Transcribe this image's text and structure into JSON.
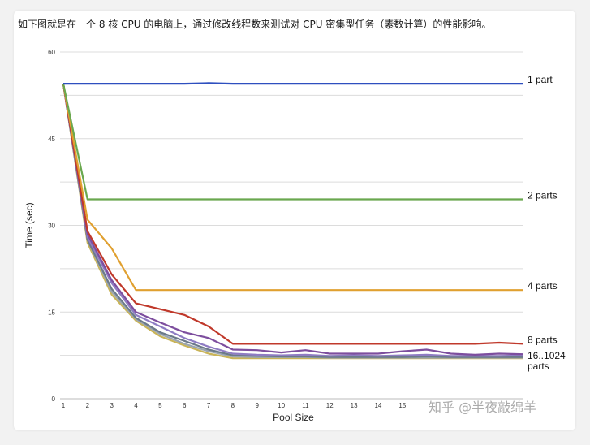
{
  "caption": "如下图就是在一个 8 核 CPU 的电脑上，通过修改线程数来测试对 CPU 密集型任务（素数计算）的性能影响。",
  "watermark": "知乎 @半夜敲绵羊",
  "chart_data": {
    "type": "line",
    "title": "",
    "xlabel": "Pool Size",
    "ylabel": "Time (sec)",
    "ylim": [
      0,
      60
    ],
    "xlim": [
      1,
      20
    ],
    "y_ticks": [
      0,
      15,
      30,
      45,
      60
    ],
    "x": [
      1,
      2,
      3,
      4,
      5,
      6,
      7,
      8,
      9,
      10,
      11,
      12,
      13,
      14,
      15,
      16,
      17,
      18,
      19,
      20
    ],
    "x_tick_labels": [
      "1",
      "2",
      "3",
      "4",
      "5",
      "6",
      "7",
      "8",
      "9",
      "10",
      "11",
      "12",
      "13",
      "14",
      "15",
      "",
      "",
      "",
      "",
      ""
    ],
    "grid": true,
    "series": [
      {
        "name": "1 part",
        "color": "#2e4fbf",
        "values": [
          54.5,
          54.5,
          54.5,
          54.5,
          54.5,
          54.5,
          54.6,
          54.5,
          54.5,
          54.5,
          54.5,
          54.5,
          54.5,
          54.5,
          54.5,
          54.5,
          54.5,
          54.5,
          54.5,
          54.5
        ]
      },
      {
        "name": "2 parts",
        "color": "#6aa84f",
        "values": [
          54.5,
          34.5,
          34.5,
          34.5,
          34.5,
          34.5,
          34.5,
          34.5,
          34.5,
          34.5,
          34.5,
          34.5,
          34.5,
          34.5,
          34.5,
          34.5,
          34.5,
          34.5,
          34.5,
          34.5
        ]
      },
      {
        "name": "4 parts",
        "color": "#e0a030",
        "values": [
          54.5,
          31.0,
          26.0,
          18.8,
          18.8,
          18.8,
          18.8,
          18.8,
          18.8,
          18.8,
          18.8,
          18.8,
          18.8,
          18.8,
          18.8,
          18.8,
          18.8,
          18.8,
          18.8,
          18.8
        ]
      },
      {
        "name": "8 parts",
        "color": "#c0392b",
        "values": [
          54.5,
          29.0,
          21.5,
          16.5,
          15.5,
          14.5,
          12.5,
          9.5,
          9.5,
          9.5,
          9.5,
          9.5,
          9.5,
          9.5,
          9.5,
          9.5,
          9.5,
          9.5,
          9.7,
          9.5
        ]
      },
      {
        "name": "",
        "color": "#7d4e9e",
        "values": [
          54.5,
          28.5,
          20.5,
          15.0,
          13.2,
          11.5,
          10.5,
          8.5,
          8.4,
          8.0,
          8.4,
          7.8,
          7.8,
          7.8,
          8.2,
          8.5,
          7.8,
          7.6,
          7.8,
          7.7
        ]
      },
      {
        "name": "",
        "color": "#8e7cc3",
        "values": [
          54.5,
          28.0,
          20.0,
          14.5,
          12.5,
          10.5,
          9.0,
          7.8,
          7.6,
          7.5,
          7.6,
          7.4,
          7.5,
          7.4,
          7.5,
          7.6,
          7.4,
          7.4,
          7.4,
          7.5
        ]
      },
      {
        "name": "",
        "color": "#6c7a89",
        "values": [
          54.5,
          27.5,
          19.0,
          14.0,
          11.5,
          10.0,
          8.5,
          7.5,
          7.4,
          7.3,
          7.3,
          7.2,
          7.2,
          7.2,
          7.2,
          7.3,
          7.2,
          7.2,
          7.2,
          7.2
        ]
      },
      {
        "name": "",
        "color": "#9aa5b1",
        "values": [
          54.5,
          27.5,
          18.5,
          13.8,
          11.2,
          9.5,
          8.2,
          7.3,
          7.2,
          7.2,
          7.2,
          7.1,
          7.1,
          7.1,
          7.1,
          7.1,
          7.1,
          7.1,
          7.1,
          7.1
        ]
      },
      {
        "name": "",
        "color": "#c9b458",
        "values": [
          54.5,
          27.0,
          18.0,
          13.5,
          10.8,
          9.2,
          7.8,
          7.0,
          7.0,
          7.0,
          7.0,
          7.0,
          7.0,
          7.0,
          7.0,
          7.0,
          7.0,
          7.0,
          7.0,
          7.0
        ]
      }
    ],
    "annotations": [
      {
        "text": "16..1024",
        "near": "bottom-right"
      },
      {
        "text": "parts",
        "near": "bottom-right"
      }
    ]
  }
}
